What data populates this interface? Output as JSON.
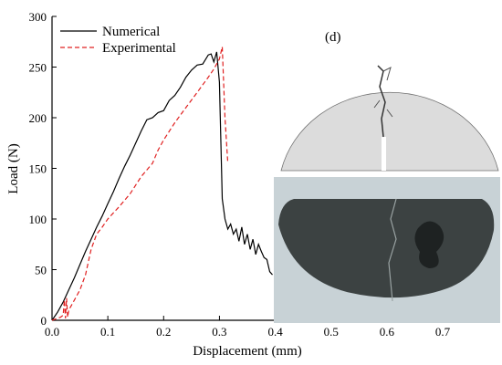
{
  "chart_data": {
    "type": "line",
    "xlabel": "Displacement (mm)",
    "ylabel": "Load (N)",
    "xlim": [
      0.0,
      0.7
    ],
    "ylim": [
      0,
      300
    ],
    "xticks": [
      0.0,
      0.1,
      0.2,
      0.3,
      0.4,
      0.5,
      0.6,
      0.7
    ],
    "xtick_labels": [
      "0.0",
      "0.1",
      "0.2",
      "0.3",
      "0.4",
      "0.5",
      "0.6",
      "0.7"
    ],
    "yticks": [
      0,
      50,
      100,
      150,
      200,
      250,
      300
    ],
    "ytick_labels": [
      "0",
      "50",
      "100",
      "150",
      "200",
      "250",
      "300"
    ],
    "grid": false,
    "legend_position": "top-left",
    "panel_label": "(d)",
    "series": [
      {
        "name": "Numerical",
        "color": "#000000",
        "style": "solid",
        "x": [
          0.0,
          0.01,
          0.02,
          0.03,
          0.04,
          0.05,
          0.06,
          0.07,
          0.08,
          0.09,
          0.1,
          0.11,
          0.12,
          0.13,
          0.14,
          0.15,
          0.16,
          0.17,
          0.18,
          0.19,
          0.2,
          0.21,
          0.22,
          0.23,
          0.24,
          0.25,
          0.26,
          0.27,
          0.28,
          0.285,
          0.29,
          0.295,
          0.3,
          0.305,
          0.31,
          0.315,
          0.32,
          0.325,
          0.33,
          0.335,
          0.34,
          0.345,
          0.35,
          0.355,
          0.36,
          0.365,
          0.37,
          0.375,
          0.38,
          0.385,
          0.39,
          0.395
        ],
        "y": [
          0,
          8,
          18,
          30,
          42,
          55,
          68,
          80,
          92,
          103,
          115,
          127,
          140,
          152,
          163,
          175,
          187,
          198,
          200,
          205,
          207,
          217,
          222,
          230,
          240,
          247,
          252,
          253,
          262,
          263,
          255,
          265,
          235,
          120,
          100,
          90,
          95,
          85,
          90,
          78,
          92,
          75,
          85,
          70,
          80,
          65,
          75,
          68,
          62,
          60,
          48,
          45
        ]
      },
      {
        "name": "Experimental",
        "color": "#e02020",
        "style": "dashed",
        "x": [
          0.0,
          0.01,
          0.015,
          0.02,
          0.022,
          0.024,
          0.026,
          0.028,
          0.03,
          0.035,
          0.04,
          0.05,
          0.06,
          0.07,
          0.08,
          0.09,
          0.1,
          0.12,
          0.14,
          0.16,
          0.18,
          0.19,
          0.2,
          0.22,
          0.24,
          0.26,
          0.28,
          0.29,
          0.3,
          0.305,
          0.31,
          0.315
        ],
        "y": [
          0,
          2,
          3,
          5,
          20,
          2,
          22,
          3,
          10,
          15,
          20,
          30,
          45,
          70,
          85,
          92,
          100,
          112,
          125,
          142,
          155,
          168,
          178,
          195,
          210,
          225,
          240,
          248,
          258,
          270,
          200,
          155
        ]
      }
    ]
  },
  "photo": {
    "caption_icons": [
      "fractured-specimen-simulation",
      "fractured-specimen-photo"
    ],
    "sim_fill": "#dcdcdc",
    "photo_fill": "#3c4242",
    "photo_bg": "#c8d2d6"
  }
}
